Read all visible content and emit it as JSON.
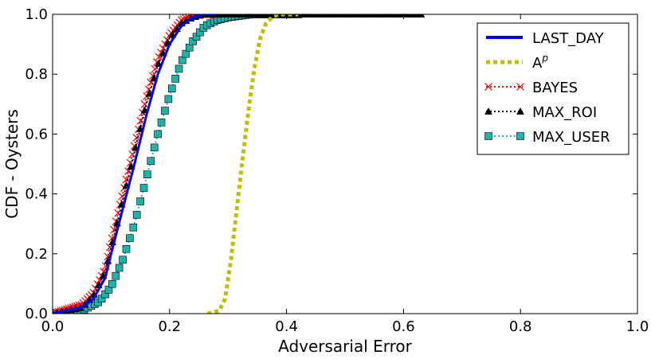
{
  "chart_data": {
    "type": "line",
    "xlabel": "Adversarial Error",
    "ylabel": "CDF - Oysters",
    "xlim": [
      0.0,
      1.0
    ],
    "ylim": [
      0.0,
      1.0
    ],
    "x_ticks": [
      "0.0",
      "0.2",
      "0.4",
      "0.6",
      "0.8",
      "1.0"
    ],
    "y_ticks": [
      "0.0",
      "0.2",
      "0.4",
      "0.6",
      "0.8",
      "1.0"
    ],
    "grid": false,
    "legend_position": "top-right",
    "series": [
      {
        "name": "LAST_DAY",
        "color": "#0000ff",
        "style": "solid",
        "marker": "none",
        "x": [
          0.0,
          0.05,
          0.07,
          0.09,
          0.1,
          0.12,
          0.14,
          0.16,
          0.18,
          0.2,
          0.22,
          0.24,
          0.26,
          0.28
        ],
        "y": [
          0.0,
          0.02,
          0.05,
          0.12,
          0.2,
          0.35,
          0.5,
          0.66,
          0.8,
          0.9,
          0.96,
          0.99,
          1.0,
          1.0
        ]
      },
      {
        "name": "A",
        "name_superscript": "p",
        "color": "#bfbf00",
        "style": "dotted",
        "marker": "none",
        "x": [
          0.265,
          0.285,
          0.295,
          0.305,
          0.315,
          0.325,
          0.335,
          0.345,
          0.355,
          0.365,
          0.375,
          0.385,
          0.4,
          0.42
        ],
        "y": [
          0.0,
          0.01,
          0.05,
          0.18,
          0.35,
          0.52,
          0.68,
          0.82,
          0.92,
          0.97,
          0.99,
          1.0,
          1.0,
          1.0
        ]
      },
      {
        "name": "BAYES",
        "color": "#ff0000",
        "style": "dotted",
        "marker": "x",
        "x": [
          0.0,
          0.05,
          0.07,
          0.09,
          0.1,
          0.12,
          0.14,
          0.16,
          0.18,
          0.2,
          0.22,
          0.24,
          0.26,
          0.28
        ],
        "y": [
          0.0,
          0.03,
          0.07,
          0.15,
          0.24,
          0.4,
          0.56,
          0.72,
          0.85,
          0.93,
          0.98,
          1.0,
          1.0,
          1.0
        ]
      },
      {
        "name": "MAX_ROI",
        "color": "#000000",
        "style": "dotted",
        "marker": "triangle",
        "x": [
          0.0,
          0.05,
          0.07,
          0.09,
          0.1,
          0.12,
          0.14,
          0.16,
          0.18,
          0.2,
          0.22,
          0.24,
          0.26,
          0.3,
          0.4,
          0.5,
          0.63
        ],
        "y": [
          0.0,
          0.02,
          0.06,
          0.14,
          0.22,
          0.38,
          0.54,
          0.7,
          0.83,
          0.92,
          0.97,
          0.99,
          1.0,
          1.0,
          1.0,
          1.0,
          1.0
        ]
      },
      {
        "name": "MAX_USER",
        "color": "#20b2aa",
        "style": "dotted",
        "marker": "square",
        "x": [
          0.0,
          0.05,
          0.08,
          0.1,
          0.12,
          0.14,
          0.16,
          0.18,
          0.2,
          0.22,
          0.24,
          0.26,
          0.28,
          0.3,
          0.34,
          0.38,
          0.42
        ],
        "y": [
          0.0,
          0.01,
          0.04,
          0.09,
          0.18,
          0.3,
          0.45,
          0.6,
          0.73,
          0.84,
          0.91,
          0.96,
          0.98,
          0.99,
          1.0,
          1.0,
          1.0
        ]
      }
    ]
  }
}
